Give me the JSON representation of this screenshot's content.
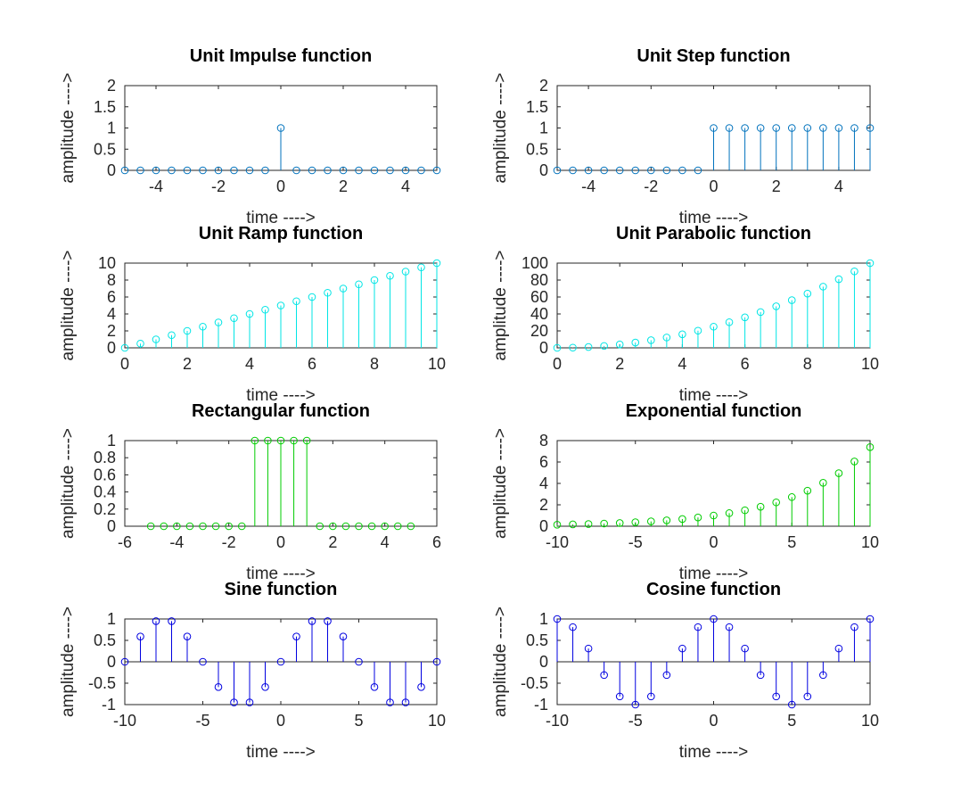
{
  "chart_data": [
    {
      "type": "stem",
      "title": "Unit Impulse function",
      "xlabel": "time ---->",
      "ylabel": "amplitude ---->",
      "color": "#0072BD",
      "xlim": [
        -5,
        5
      ],
      "ylim": [
        0,
        2
      ],
      "xticks": [
        -4,
        -2,
        0,
        2,
        4
      ],
      "yticks": [
        0,
        0.5,
        1,
        1.5,
        2
      ],
      "x": [
        -5,
        -4.5,
        -4,
        -3.5,
        -3,
        -2.5,
        -2,
        -1.5,
        -1,
        -0.5,
        0,
        0.5,
        1,
        1.5,
        2,
        2.5,
        3,
        3.5,
        4,
        4.5,
        5
      ],
      "y": [
        0,
        0,
        0,
        0,
        0,
        0,
        0,
        0,
        0,
        0,
        1,
        0,
        0,
        0,
        0,
        0,
        0,
        0,
        0,
        0,
        0
      ]
    },
    {
      "type": "stem",
      "title": "Unit Step function",
      "xlabel": "time ---->",
      "ylabel": "amplitude ---->",
      "color": "#0072BD",
      "xlim": [
        -5,
        5
      ],
      "ylim": [
        0,
        2
      ],
      "xticks": [
        -4,
        -2,
        0,
        2,
        4
      ],
      "yticks": [
        0,
        0.5,
        1,
        1.5,
        2
      ],
      "x": [
        -5,
        -4.5,
        -4,
        -3.5,
        -3,
        -2.5,
        -2,
        -1.5,
        -1,
        -0.5,
        0,
        0.5,
        1,
        1.5,
        2,
        2.5,
        3,
        3.5,
        4,
        4.5,
        5
      ],
      "y": [
        0,
        0,
        0,
        0,
        0,
        0,
        0,
        0,
        0,
        0,
        1,
        1,
        1,
        1,
        1,
        1,
        1,
        1,
        1,
        1,
        1
      ]
    },
    {
      "type": "stem",
      "title": "Unit Ramp function",
      "xlabel": "time ---->",
      "ylabel": "amplitude ---->",
      "color": "#00E5E5",
      "xlim": [
        0,
        10
      ],
      "ylim": [
        0,
        10
      ],
      "xticks": [
        0,
        2,
        4,
        6,
        8,
        10
      ],
      "yticks": [
        0,
        2,
        4,
        6,
        8,
        10
      ],
      "x": [
        0,
        0.5,
        1,
        1.5,
        2,
        2.5,
        3,
        3.5,
        4,
        4.5,
        5,
        5.5,
        6,
        6.5,
        7,
        7.5,
        8,
        8.5,
        9,
        9.5,
        10
      ],
      "y": [
        0,
        0.5,
        1,
        1.5,
        2,
        2.5,
        3,
        3.5,
        4,
        4.5,
        5,
        5.5,
        6,
        6.5,
        7,
        7.5,
        8,
        8.5,
        9,
        9.5,
        10
      ]
    },
    {
      "type": "stem",
      "title": "Unit Parabolic function",
      "xlabel": "time ---->",
      "ylabel": "amplitude ---->",
      "color": "#00E5E5",
      "xlim": [
        0,
        10
      ],
      "ylim": [
        0,
        100
      ],
      "xticks": [
        0,
        2,
        4,
        6,
        8,
        10
      ],
      "yticks": [
        0,
        20,
        40,
        60,
        80,
        100
      ],
      "x": [
        0,
        0.5,
        1,
        1.5,
        2,
        2.5,
        3,
        3.5,
        4,
        4.5,
        5,
        5.5,
        6,
        6.5,
        7,
        7.5,
        8,
        8.5,
        9,
        9.5,
        10
      ],
      "y": [
        0,
        0.25,
        1,
        2.25,
        4,
        6.25,
        9,
        12.25,
        16,
        20.25,
        25,
        30.25,
        36,
        42.25,
        49,
        56.25,
        64,
        72.25,
        81,
        90.25,
        100
      ]
    },
    {
      "type": "stem",
      "title": "Rectangular function",
      "xlabel": "time ---->",
      "ylabel": "amplitude ---->",
      "color": "#00CC00",
      "xlim": [
        -6,
        6
      ],
      "ylim": [
        0,
        1
      ],
      "xticks": [
        -6,
        -4,
        -2,
        0,
        2,
        4,
        6
      ],
      "yticks": [
        0,
        0.2,
        0.4,
        0.6,
        0.8,
        1
      ],
      "x": [
        -5,
        -4.5,
        -4,
        -3.5,
        -3,
        -2.5,
        -2,
        -1.5,
        -1,
        -0.5,
        0,
        0.5,
        1,
        1.5,
        2,
        2.5,
        3,
        3.5,
        4,
        4.5,
        5
      ],
      "y": [
        0,
        0,
        0,
        0,
        0,
        0,
        0,
        0,
        1,
        1,
        1,
        1,
        1,
        0,
        0,
        0,
        0,
        0,
        0,
        0,
        0
      ]
    },
    {
      "type": "stem",
      "title": "Exponential function",
      "xlabel": "time ---->",
      "ylabel": "amplitude ---->",
      "color": "#00CC00",
      "xlim": [
        -10,
        10
      ],
      "ylim": [
        0,
        8
      ],
      "xticks": [
        -10,
        -5,
        0,
        5,
        10
      ],
      "yticks": [
        0,
        2,
        4,
        6,
        8
      ],
      "x": [
        -10,
        -9,
        -8,
        -7,
        -6,
        -5,
        -4,
        -3,
        -2,
        -1,
        0,
        1,
        2,
        3,
        4,
        5,
        6,
        7,
        8,
        9,
        10
      ],
      "y": [
        0.14,
        0.17,
        0.2,
        0.25,
        0.3,
        0.37,
        0.45,
        0.55,
        0.67,
        0.82,
        1,
        1.22,
        1.49,
        1.82,
        2.23,
        2.72,
        3.32,
        4.06,
        4.95,
        6.05,
        7.39
      ]
    },
    {
      "type": "stem",
      "title": "Sine function",
      "xlabel": "time ---->",
      "ylabel": "amplitude ---->",
      "color": "#0000E0",
      "xlim": [
        -10,
        10
      ],
      "ylim": [
        -1,
        1
      ],
      "xticks": [
        -10,
        -5,
        0,
        5,
        10
      ],
      "yticks": [
        -1,
        -0.5,
        0,
        0.5,
        1
      ],
      "x": [
        -10,
        -9,
        -8,
        -7,
        -6,
        -5,
        -4,
        -3,
        -2,
        -1,
        0,
        1,
        2,
        3,
        4,
        5,
        6,
        7,
        8,
        9,
        10
      ],
      "y": [
        0,
        0.59,
        0.95,
        0.95,
        0.59,
        0,
        -0.59,
        -0.95,
        -0.95,
        -0.59,
        0,
        0.59,
        0.95,
        0.95,
        0.59,
        0,
        -0.59,
        -0.95,
        -0.95,
        -0.59,
        0
      ]
    },
    {
      "type": "stem",
      "title": "Cosine function",
      "xlabel": "time ---->",
      "ylabel": "amplitude ---->",
      "color": "#0000E0",
      "xlim": [
        -10,
        10
      ],
      "ylim": [
        -1,
        1
      ],
      "xticks": [
        -10,
        -5,
        0,
        5,
        10
      ],
      "yticks": [
        -1,
        -0.5,
        0,
        0.5,
        1
      ],
      "x": [
        -10,
        -9,
        -8,
        -7,
        -6,
        -5,
        -4,
        -3,
        -2,
        -1,
        0,
        1,
        2,
        3,
        4,
        5,
        6,
        7,
        8,
        9,
        10
      ],
      "y": [
        1,
        0.81,
        0.31,
        -0.31,
        -0.81,
        -1,
        -0.81,
        -0.31,
        0.31,
        0.81,
        1,
        0.81,
        0.31,
        -0.31,
        -0.81,
        -1,
        -0.81,
        -0.31,
        0.31,
        0.81,
        1
      ]
    }
  ]
}
